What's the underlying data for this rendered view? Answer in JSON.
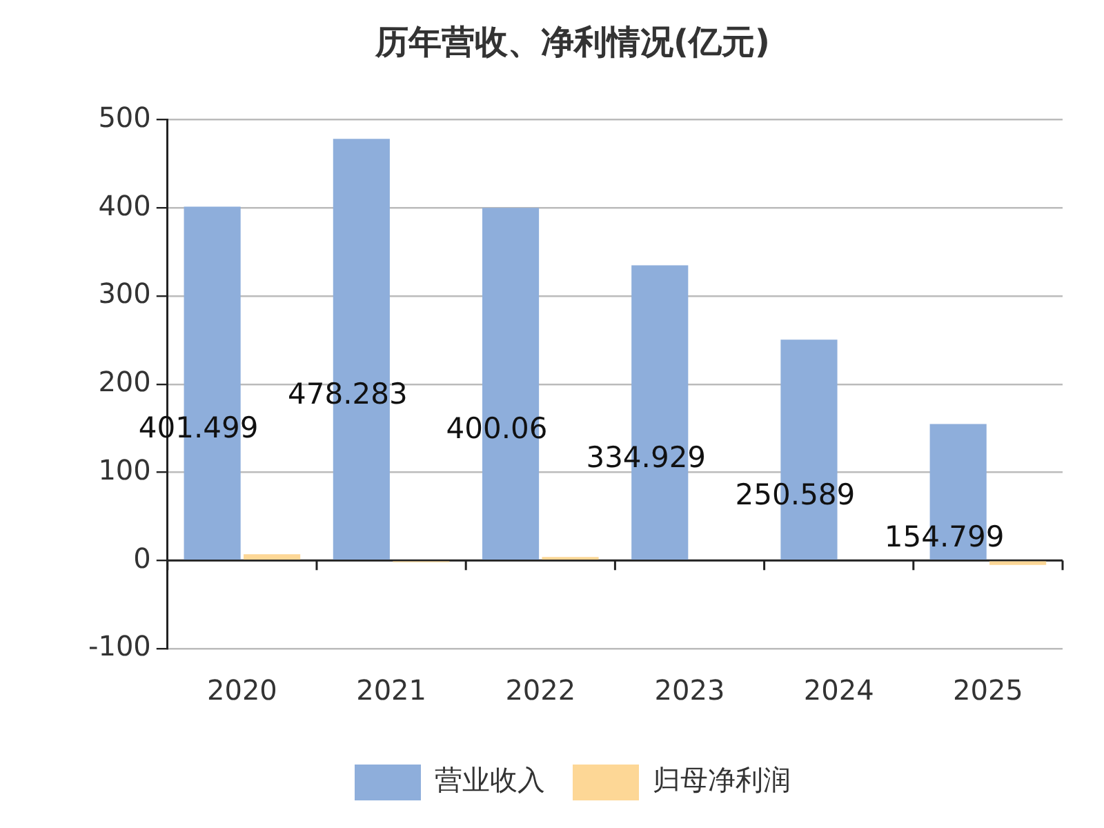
{
  "chart_data": {
    "type": "bar",
    "title": "历年营收、净利情况(亿元)",
    "categories": [
      "2020",
      "2021",
      "2022",
      "2023",
      "2024",
      "2025"
    ],
    "series": [
      {
        "name": "营业收入",
        "color": "#8eaedb",
        "values": [
          401.499,
          478.283,
          400.06,
          334.929,
          250.589,
          154.799
        ],
        "value_labels": [
          "401.499",
          "478.283",
          "400.06",
          "334.929",
          "250.589",
          "154.799"
        ]
      },
      {
        "name": "归母净利润",
        "color": "#fdd796",
        "values": [
          7,
          -2,
          4,
          null,
          null,
          -5
        ]
      }
    ],
    "ylim": [
      -100,
      500
    ],
    "yticks": [
      -100,
      0,
      100,
      200,
      300,
      400,
      500
    ],
    "grid": "y",
    "legend": "bottom"
  }
}
